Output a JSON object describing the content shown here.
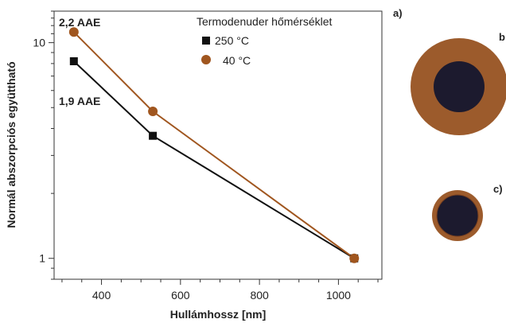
{
  "chart_data": {
    "type": "line",
    "xlabel": "Hullámhossz [nm]",
    "ylabel": "Normál abszorpciós együttható",
    "x_scale": "linear",
    "y_scale": "log",
    "xlim": [
      280,
      1110
    ],
    "ylim": [
      0.8,
      14
    ],
    "x_ticks": [
      400,
      600,
      800,
      1000
    ],
    "y_ticks": [
      1,
      10
    ],
    "grid": false,
    "legend": {
      "title": "Termodenuder hőmérséklet",
      "placement": "top-right"
    },
    "series": [
      {
        "name": "250 °C",
        "color": "#111111",
        "marker": "square",
        "x": [
          330,
          530,
          1040
        ],
        "y": [
          8.2,
          3.7,
          1.0
        ]
      },
      {
        "name": "40 °C",
        "color": "#a0561f",
        "marker": "circle",
        "x": [
          330,
          530,
          1040
        ],
        "y": [
          11.2,
          4.8,
          1.0
        ]
      }
    ],
    "annotations": [
      {
        "text": "2,2 AAE",
        "series": "40 °C"
      },
      {
        "text": "1,9 AAE",
        "series": "250 °C"
      }
    ]
  },
  "panels": {
    "a": "a)",
    "b": "b",
    "c": "c)"
  },
  "particles": {
    "core_color": "#1c1a2e",
    "coating_color": "#9c5b2c",
    "coating_outline": "#7a4120"
  }
}
